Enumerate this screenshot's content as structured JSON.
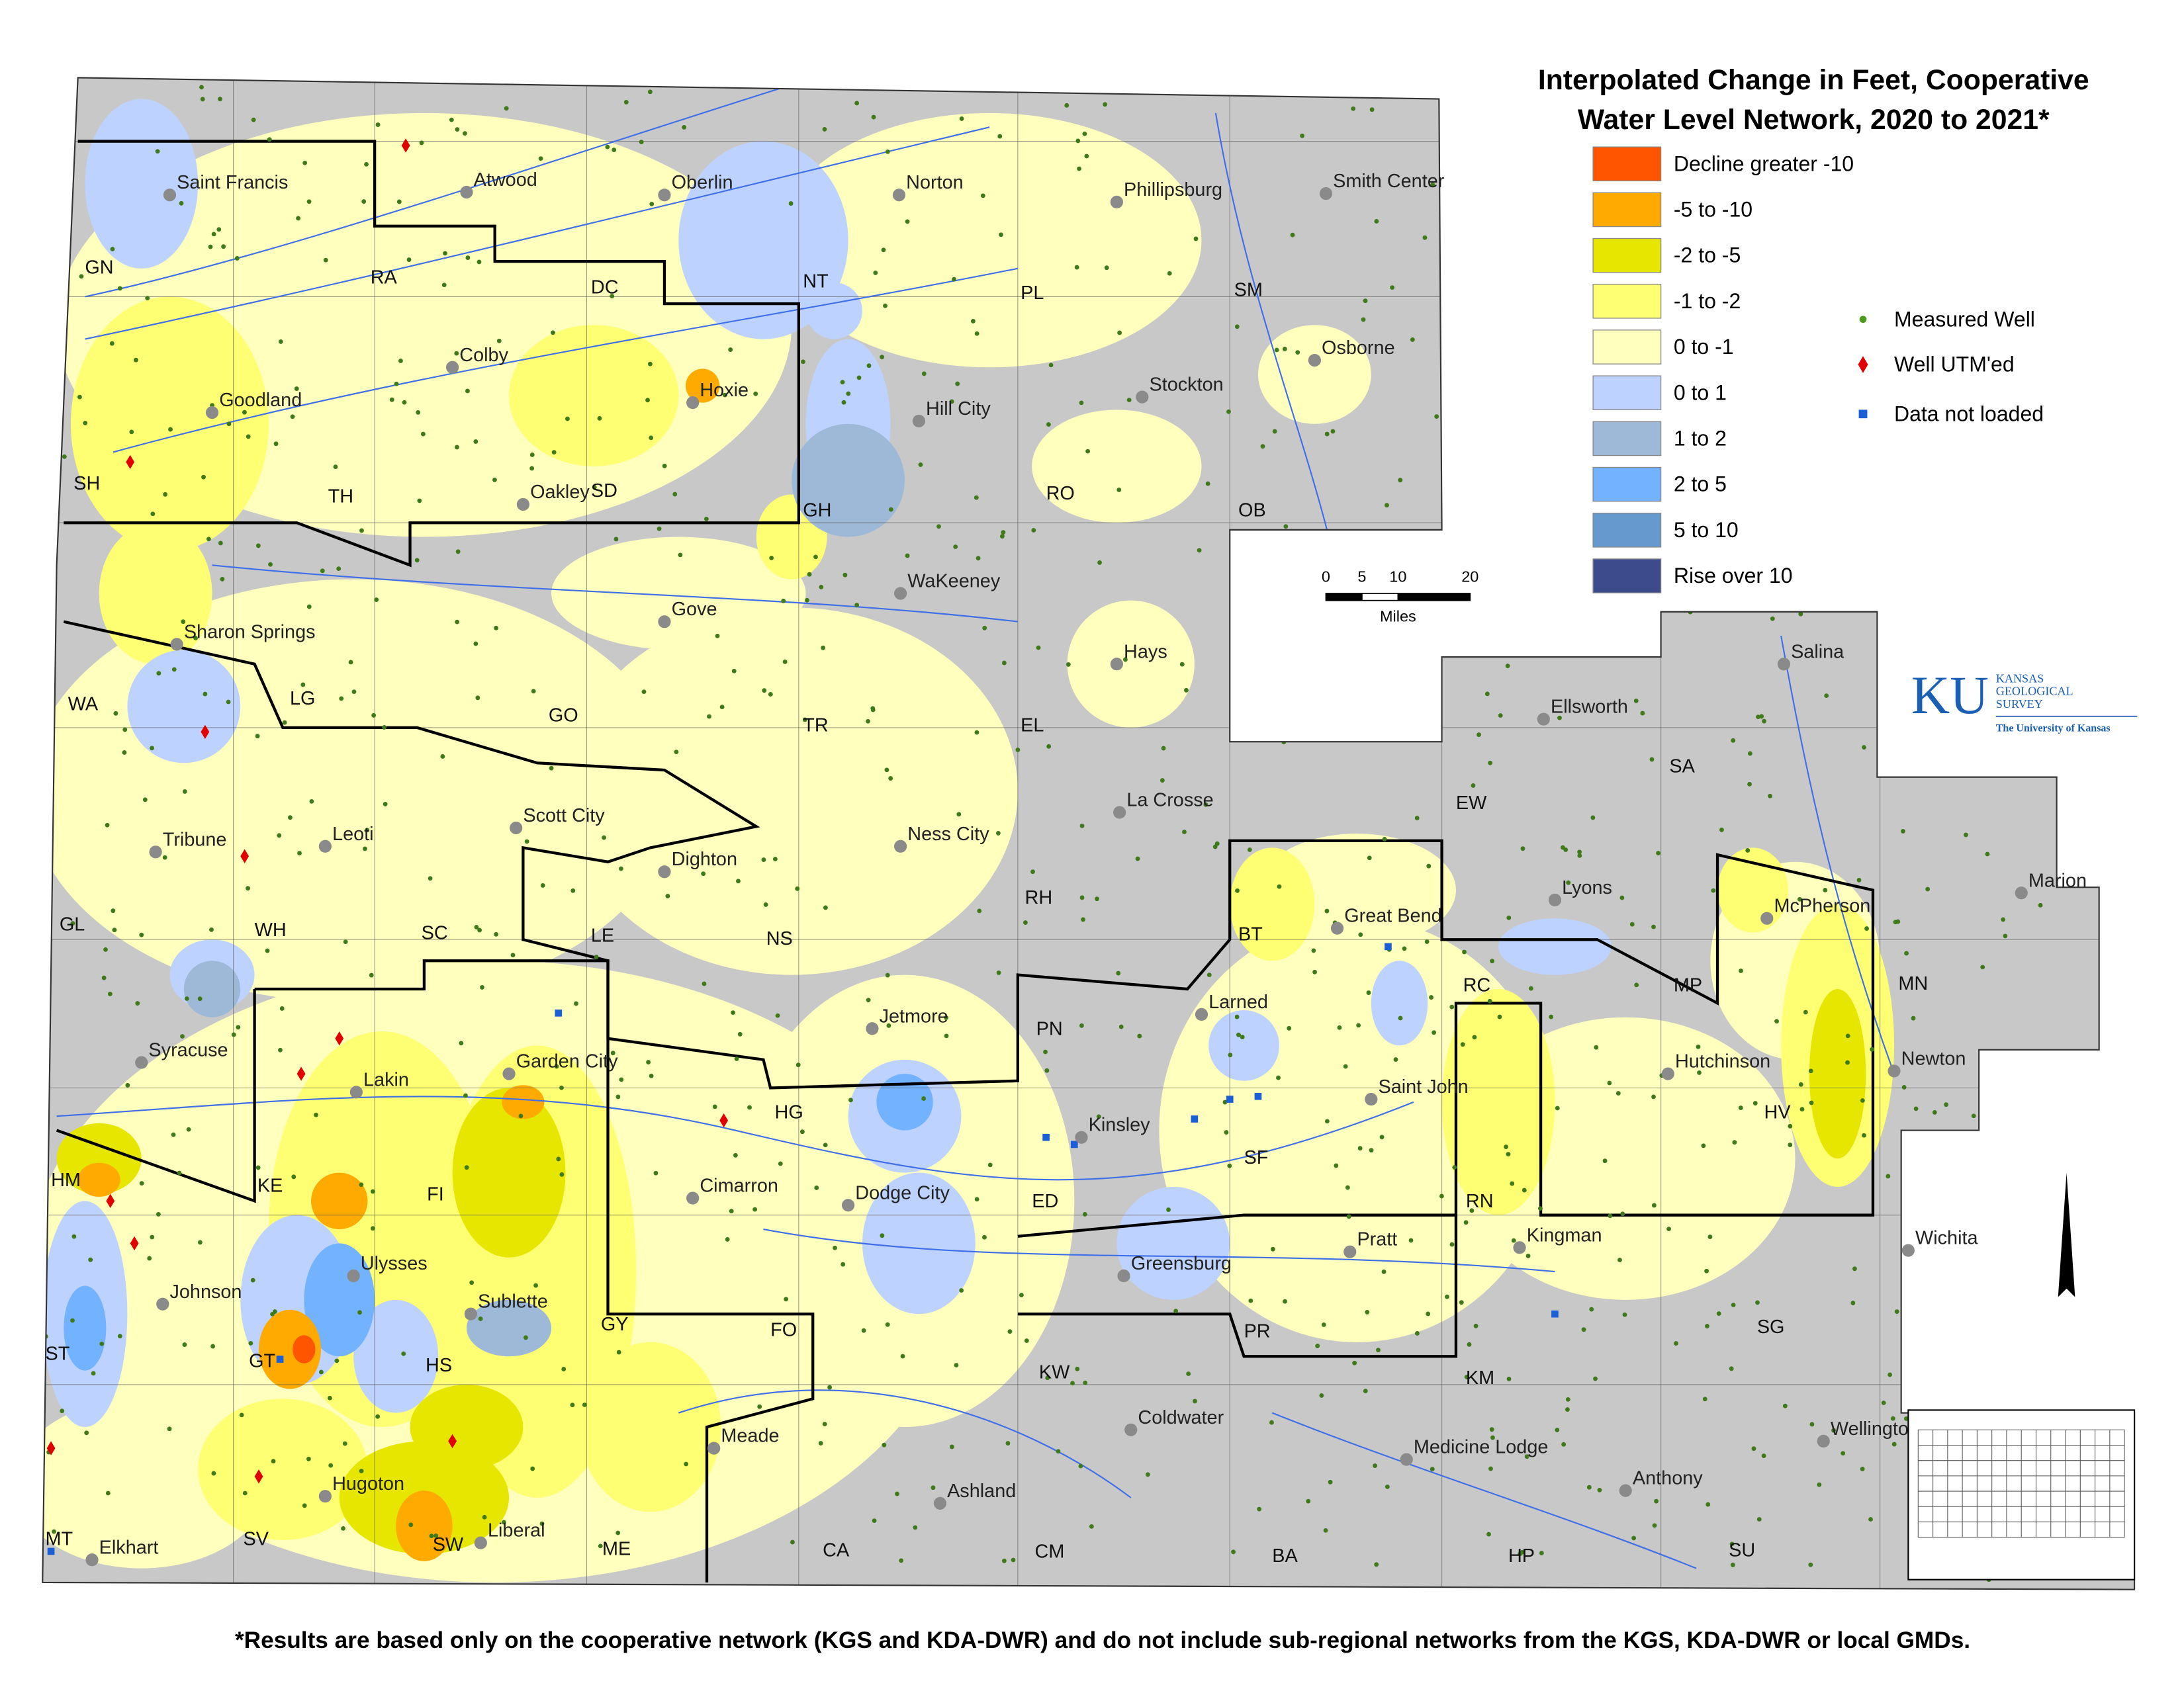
{
  "title": [
    "Interpolated Change in Feet, Cooperative",
    "Water Level Network, 2020 to 2021*"
  ],
  "legend": {
    "items": [
      {
        "label": "Decline greater -10",
        "color": "#ff5500"
      },
      {
        "label": "-5 to -10",
        "color": "#ffaa00"
      },
      {
        "label": "-2 to -5",
        "color": "#e6e600"
      },
      {
        "label": "-1 to -2",
        "color": "#ffff73"
      },
      {
        "label": "0 to -1",
        "color": "#ffffbe"
      },
      {
        "label": "0 to 1",
        "color": "#bed2ff"
      },
      {
        "label": "1 to 2",
        "color": "#9eb9d8"
      },
      {
        "label": "2 to 5",
        "color": "#73b2ff"
      },
      {
        "label": "5 to 10",
        "color": "#6699cd"
      },
      {
        "label": "Rise over 10",
        "color": "#3d4b8c"
      }
    ],
    "points": [
      {
        "label": "Measured Well",
        "color": "#4c9a1c"
      },
      {
        "label": "Well UTM'ed",
        "color": "#e00000"
      },
      {
        "label": "Data not loaded",
        "color": "#1a5fd6"
      }
    ]
  },
  "scale_bar": {
    "ticks": [
      0,
      5,
      10,
      20
    ],
    "unit": "Miles"
  },
  "logo": {
    "mark": "KU",
    "lines": [
      "KANSAS",
      "GEOLOGICAL",
      "SURVEY"
    ],
    "university": "The University of Kansas"
  },
  "cities": [
    "Saint Francis",
    "Atwood",
    "Oberlin",
    "Norton",
    "Phillipsburg",
    "Smith Center",
    "Colby",
    "Goodland",
    "Hoxie",
    "Hill City",
    "Stockton",
    "Osborne",
    "Oakley",
    "WaKeeney",
    "Gove",
    "Hays",
    "Sharon Springs",
    "Ellsworth",
    "Salina",
    "La Crosse",
    "Ness City",
    "Scott City",
    "Leoti",
    "Tribune",
    "Dighton",
    "Great Bend",
    "Lyons",
    "McPherson",
    "Marion",
    "Larned",
    "Jetmore",
    "Syracuse",
    "Lakin",
    "Garden City",
    "Saint John",
    "Hutchinson",
    "Newton",
    "Kinsley",
    "Cimarron",
    "Dodge City",
    "Kingman",
    "Pratt",
    "Wichita",
    "Ulysses",
    "Greensburg",
    "Johnson",
    "Sublette",
    "Coldwater",
    "Wellington",
    "Medicine Lodge",
    "Meade",
    "Anthony",
    "Ashland",
    "Hugoton",
    "Liberal",
    "Elkhart"
  ],
  "counties": [
    "GN",
    "RA",
    "DC",
    "NT",
    "PL",
    "SM",
    "SH",
    "TH",
    "SD",
    "GH",
    "RO",
    "OB",
    "WA",
    "LG",
    "GO",
    "TR",
    "EL",
    "SA",
    "EW",
    "GL",
    "WH",
    "SC",
    "LE",
    "NS",
    "RH",
    "BT",
    "RC",
    "MP",
    "MN",
    "PN",
    "HM",
    "KE",
    "FI",
    "HG",
    "ED",
    "SF",
    "RN",
    "HV",
    "ST",
    "GT",
    "HS",
    "GY",
    "FO",
    "KW",
    "PR",
    "KM",
    "SG",
    "MT",
    "SV",
    "SW",
    "ME",
    "CA",
    "CM",
    "BA",
    "HP",
    "SU"
  ],
  "footnote": "*Results are based only on the cooperative network (KGS and KDA-DWR) and do not include sub-regional networks from the KGS, KDA-DWR or local GMDs."
}
